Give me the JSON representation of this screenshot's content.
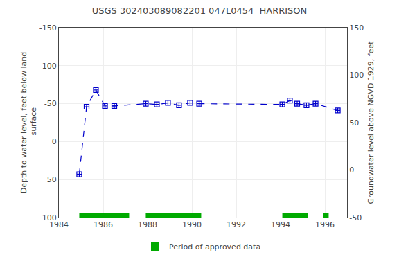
{
  "chart_data": {
    "type": "line",
    "title": "USGS 302403089082201 047L0454  HARRISON",
    "ylabel": "Depth to water level, feet below land\n surface",
    "y2label": "Groundwater level above NGVD 1929, feet",
    "x": [
      1984.92,
      1985.25,
      1985.67,
      1986.08,
      1986.5,
      1987.92,
      1988.42,
      1988.92,
      1989.42,
      1989.92,
      1990.33,
      1994.08,
      1994.42,
      1994.75,
      1995.17,
      1995.58,
      1996.58
    ],
    "series": [
      {
        "values": [
          43,
          -46,
          -68,
          -47,
          -47,
          -50,
          -49,
          -51,
          -48,
          -51,
          -50,
          -49,
          -54,
          -50,
          -48,
          -50,
          -41
        ],
        "color": "#0000cc",
        "marker": "square-cross",
        "line_style": "dashed"
      }
    ],
    "xlim": [
      1984,
      1997
    ],
    "xticks": [
      1984,
      1986,
      1988,
      1990,
      1992,
      1994,
      1996
    ],
    "ylim": [
      100,
      -150
    ],
    "yticks": [
      100,
      50,
      0,
      -50,
      -100,
      -150
    ],
    "y2lim": [
      -50,
      150
    ],
    "y2ticks": [
      -50,
      0,
      50,
      100,
      150
    ],
    "grid": true,
    "legend": "bottom",
    "approved_periods": {
      "name": "Period of approved data",
      "color": "#00aa00",
      "ranges": [
        [
          1984.92,
          1987.17
        ],
        [
          1987.92,
          1990.42
        ],
        [
          1994.08,
          1995.25
        ],
        [
          1995.92,
          1996.17
        ]
      ]
    }
  }
}
